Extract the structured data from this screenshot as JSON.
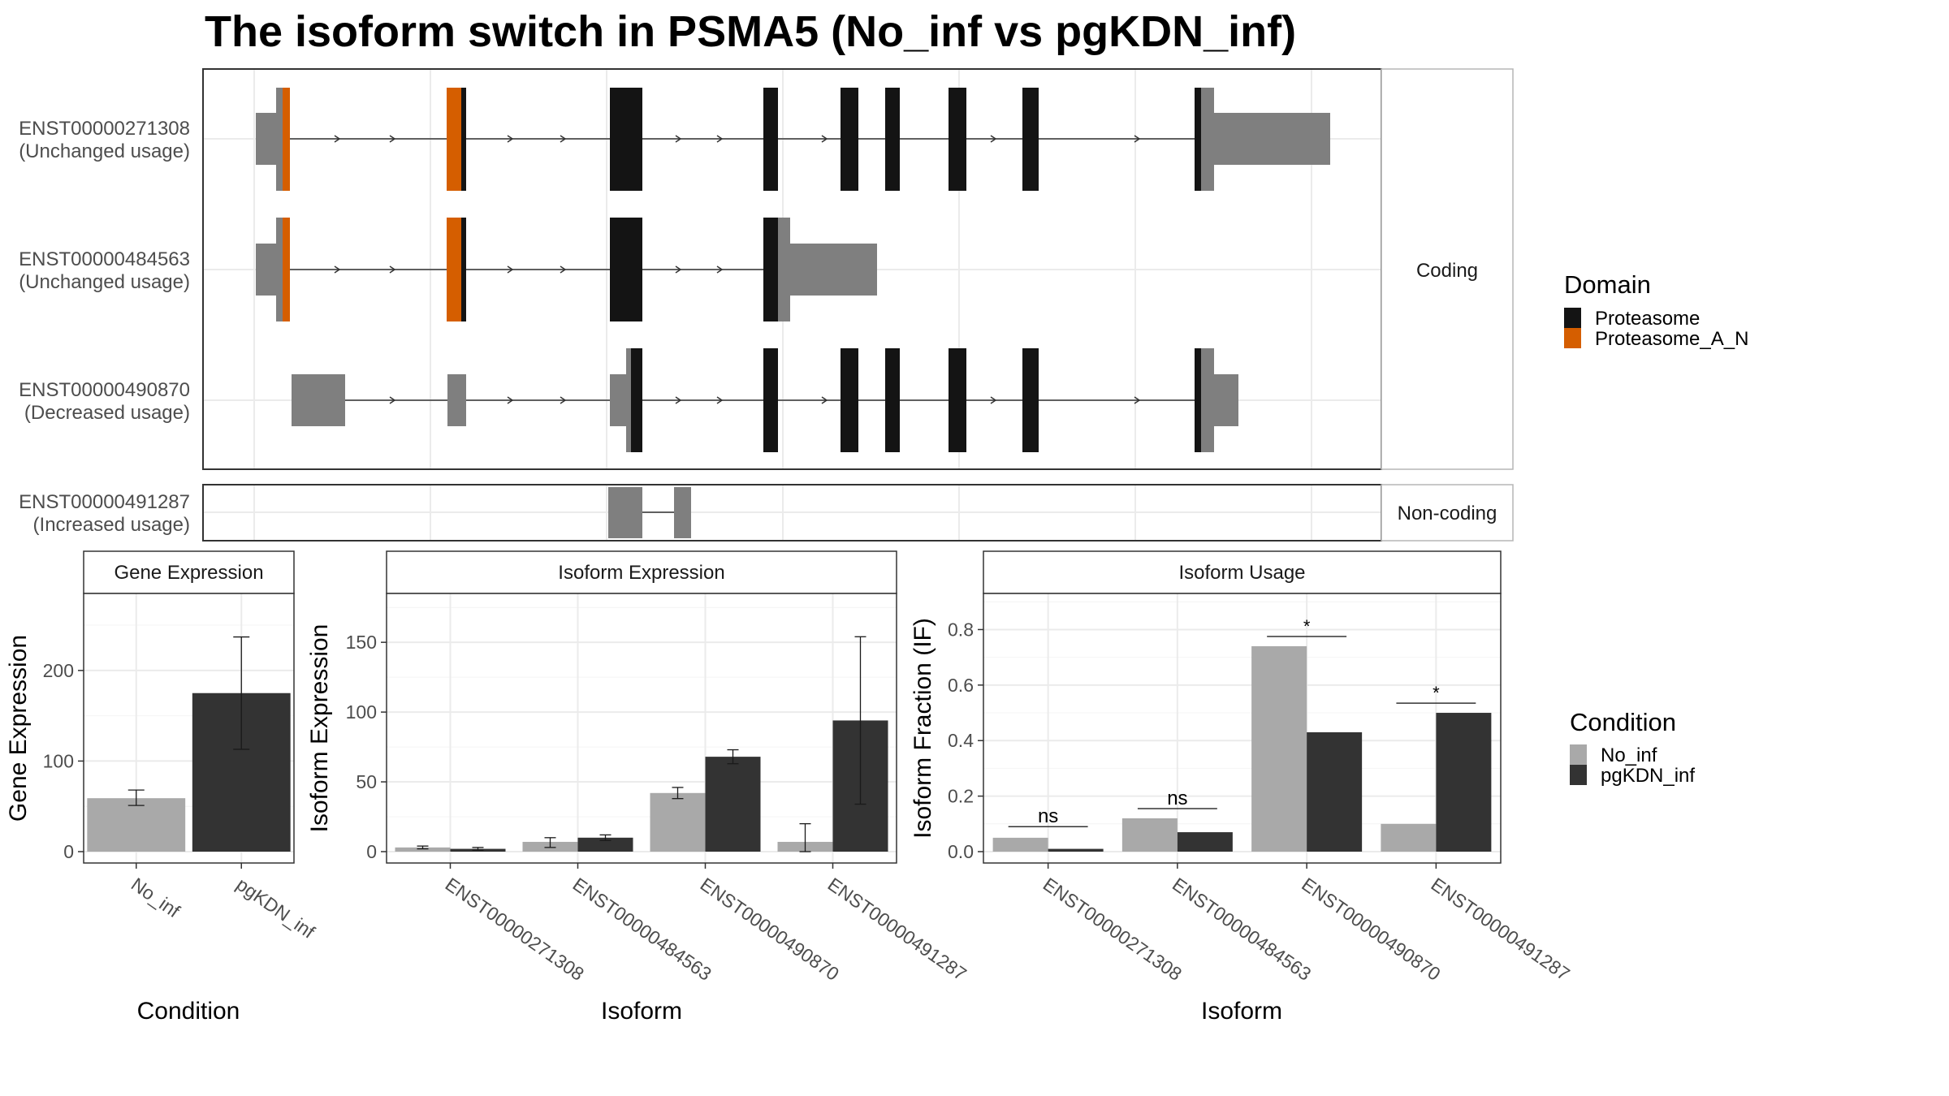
{
  "title": "The isoform switch in PSMA5 (No_inf vs pgKDN_inf)",
  "colors": {
    "proteasome": "#141414",
    "proteasome_a_n": "#d55e00",
    "utr": "#7f7f7f",
    "no_inf": "#a9a9a9",
    "pgkdn_inf": "#333333",
    "grid": "#ebebeb",
    "strip": "#f2f2f2"
  },
  "transcripts": [
    {
      "id": "ENST00000271308",
      "usage": "(Unchanged usage)",
      "group": "coding"
    },
    {
      "id": "ENST00000484563",
      "usage": "(Unchanged usage)",
      "group": "coding"
    },
    {
      "id": "ENST00000490870",
      "usage": "(Decreased usage)",
      "group": "coding"
    },
    {
      "id": "ENST00000491287",
      "usage": "(Increased usage)",
      "group": "non-coding"
    }
  ],
  "facet_labels": {
    "coding": "Coding",
    "noncoding": "Non-coding"
  },
  "domain_legend": {
    "title": "Domain",
    "items": [
      {
        "label": "Proteasome",
        "color": "#141414"
      },
      {
        "label": "Proteasome_A_N",
        "color": "#d55e00"
      }
    ]
  },
  "condition_legend": {
    "title": "Condition",
    "items": [
      {
        "label": "No_inf",
        "color": "#a9a9a9"
      },
      {
        "label": "pgKDN_inf",
        "color": "#333333"
      }
    ]
  },
  "chart_data": [
    {
      "type": "bar",
      "panel": "Gene Expression",
      "categories": [
        "No_inf",
        "pgKDN_inf"
      ],
      "values": [
        59,
        175
      ],
      "error": [
        [
          51,
          68
        ],
        [
          113,
          237
        ]
      ],
      "ylim": [
        0,
        285
      ],
      "yticks": [
        0,
        100,
        200
      ],
      "xlabel": "Condition",
      "ylabel": "Gene Expression"
    },
    {
      "type": "bar",
      "panel": "Isoform Expression",
      "categories": [
        "ENST00000271308",
        "ENST00000484563",
        "ENST00000490870",
        "ENST00000491287"
      ],
      "series": [
        {
          "name": "No_inf",
          "values": [
            3,
            7,
            42,
            7
          ],
          "error": [
            [
              2,
              4
            ],
            [
              3,
              10
            ],
            [
              38,
              46
            ],
            [
              0,
              20
            ]
          ]
        },
        {
          "name": "pgKDN_inf",
          "values": [
            2,
            10,
            68,
            94
          ],
          "error": [
            [
              1,
              3
            ],
            [
              8,
              12
            ],
            [
              63,
              73
            ],
            [
              34,
              154
            ]
          ]
        }
      ],
      "ylim": [
        0,
        185
      ],
      "yticks": [
        0,
        50,
        100,
        150
      ],
      "xlabel": "Isoform",
      "ylabel": "Isoform Expression"
    },
    {
      "type": "bar",
      "panel": "Isoform Usage",
      "categories": [
        "ENST00000271308",
        "ENST00000484563",
        "ENST00000490870",
        "ENST00000491287"
      ],
      "series": [
        {
          "name": "No_inf",
          "values": [
            0.05,
            0.12,
            0.74,
            0.1
          ]
        },
        {
          "name": "pgKDN_inf",
          "values": [
            0.01,
            0.07,
            0.43,
            0.5
          ]
        }
      ],
      "significance": [
        "ns",
        "ns",
        "*",
        "*"
      ],
      "sig_y": [
        0.09,
        0.155,
        0.775,
        0.535
      ],
      "ylim": [
        0,
        0.93
      ],
      "yticks": [
        0.0,
        0.2,
        0.4,
        0.6,
        0.8
      ],
      "ytick_labels": [
        "0.0",
        "0.2",
        "0.4",
        "0.6",
        "0.8"
      ],
      "xlabel": "Isoform",
      "ylabel": "Isoform Fraction (IF)"
    }
  ]
}
